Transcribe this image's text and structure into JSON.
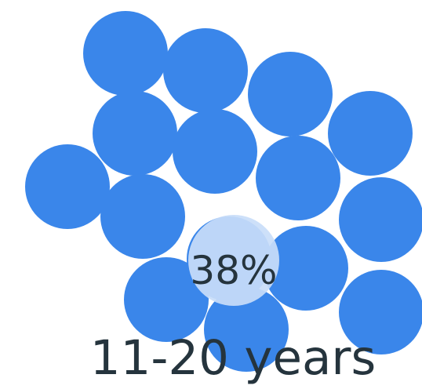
{
  "figure": {
    "percent_text": "38%",
    "caption_text": "11-20 years",
    "colors": {
      "bubble": "#3a86ea",
      "highlight": "#c9ddf8",
      "text": "#25343d",
      "background": "#ffffff"
    }
  }
}
